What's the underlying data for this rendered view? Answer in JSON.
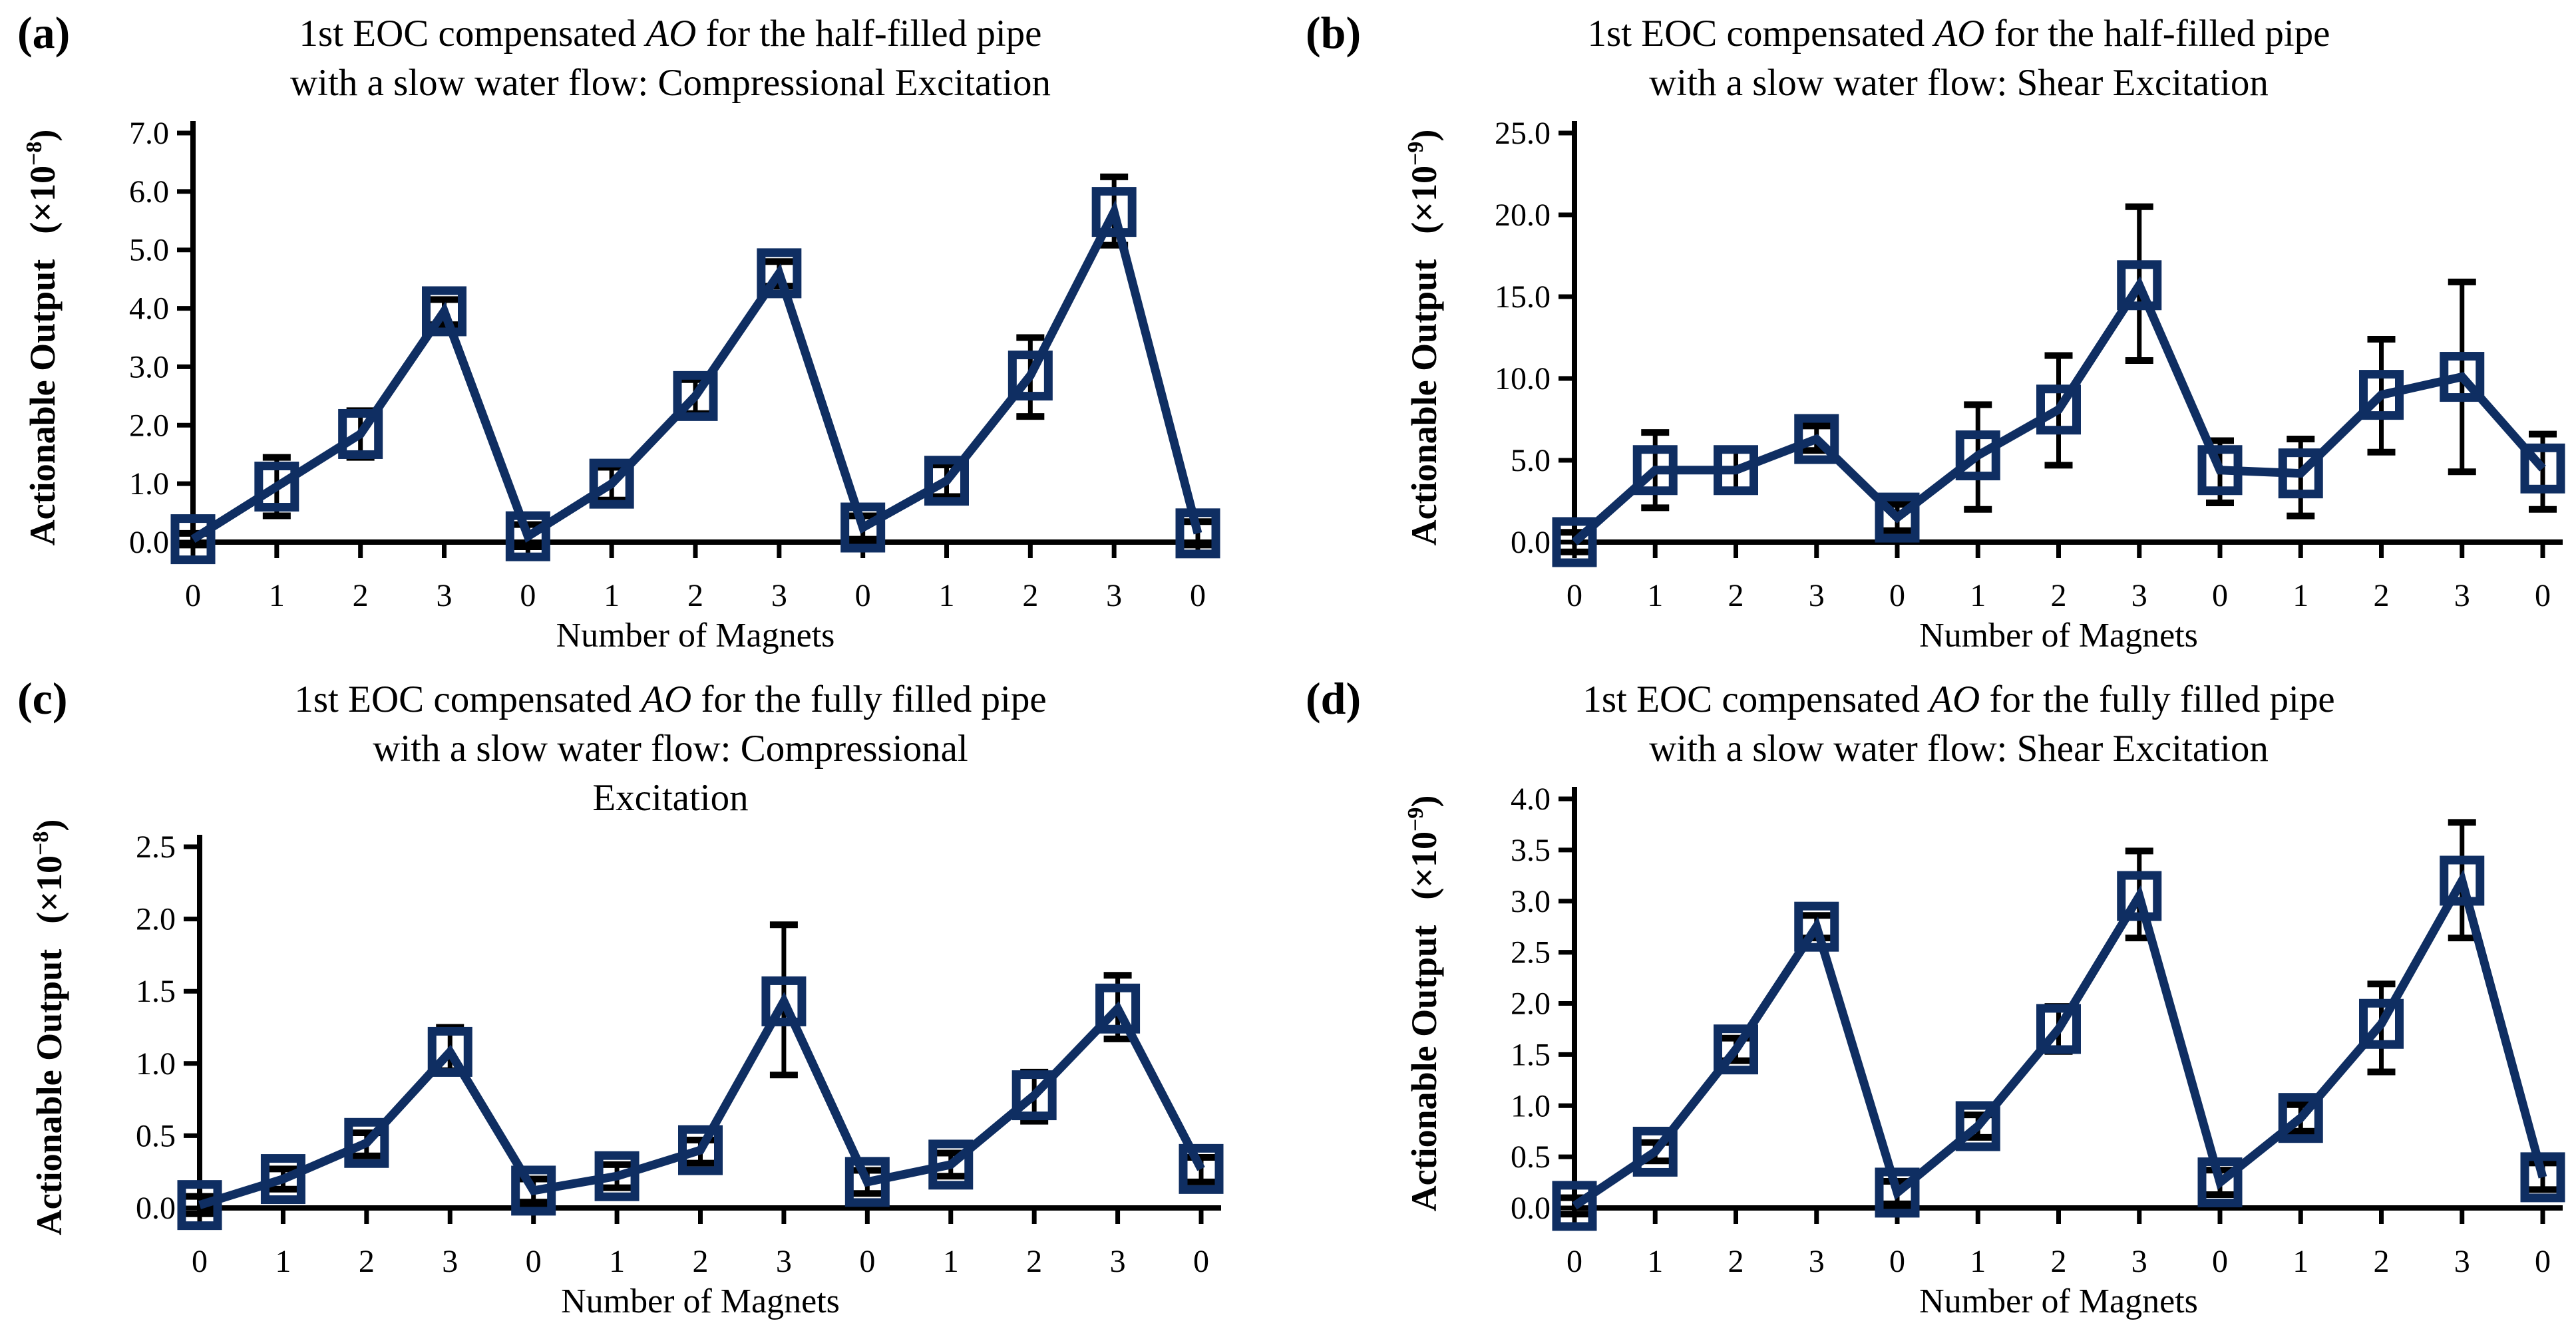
{
  "figure": {
    "background": "#ffffff",
    "series_color": "#0f2e62",
    "error_bar_color": "#000000",
    "axis_color": "#000000"
  },
  "chart_data": [
    {
      "panel": "(a)",
      "type": "line",
      "title_lines": [
        "1st EOC compensated AO for the half-filled pipe",
        "with a slow water flow: Compressional Excitation"
      ],
      "xlabel": "Number of Magnets",
      "ylabel": "Actionable Output",
      "y_scale_prefix": "(×10",
      "y_scale_exponent": "−8",
      "y_scale_suffix": ")",
      "ylim": [
        0.0,
        7.0
      ],
      "y_tick_labels": [
        "0.0",
        "1.0",
        "2.0",
        "3.0",
        "4.0",
        "5.0",
        "6.0",
        "7.0"
      ],
      "x_categories": [
        "0",
        "1",
        "2",
        "3",
        "0",
        "1",
        "2",
        "3",
        "0",
        "1",
        "2",
        "3",
        "0"
      ],
      "grid": "off",
      "legend": "none",
      "series": {
        "values": [
          0.05,
          0.95,
          1.85,
          3.95,
          0.1,
          1.0,
          2.5,
          4.6,
          0.25,
          1.05,
          2.85,
          5.65,
          0.15
        ],
        "err_low": [
          -0.05,
          0.45,
          1.45,
          3.72,
          -0.08,
          0.72,
          2.2,
          4.38,
          0.05,
          0.78,
          2.15,
          5.08,
          -0.05
        ],
        "err_high": [
          0.15,
          1.45,
          2.25,
          4.15,
          0.3,
          1.28,
          2.78,
          4.8,
          0.45,
          1.32,
          3.5,
          6.25,
          0.35
        ]
      }
    },
    {
      "panel": "(b)",
      "type": "line",
      "title_lines": [
        "1st EOC compensated AO for the half-filled pipe",
        "with a slow water flow: Shear Excitation"
      ],
      "xlabel": "Number of Magnets",
      "ylabel": "Actionable Output",
      "y_scale_prefix": "(×10",
      "y_scale_exponent": "−9",
      "y_scale_suffix": ")",
      "ylim": [
        0.0,
        25.0
      ],
      "y_tick_labels": [
        "0.0",
        "5.0",
        "10.0",
        "15.0",
        "20.0",
        "25.0"
      ],
      "x_categories": [
        "0",
        "1",
        "2",
        "3",
        "0",
        "1",
        "2",
        "3",
        "0",
        "1",
        "2",
        "3",
        "0"
      ],
      "grid": "off",
      "legend": "none",
      "series": {
        "values": [
          0.0,
          4.4,
          4.4,
          6.3,
          1.5,
          5.3,
          8.1,
          15.7,
          4.4,
          4.2,
          9.0,
          10.1,
          4.5
        ],
        "err_low": [
          -0.6,
          2.1,
          3.1,
          5.6,
          0.7,
          2.0,
          4.7,
          11.1,
          2.4,
          1.6,
          5.5,
          4.3,
          2.0
        ],
        "err_high": [
          0.6,
          6.7,
          5.7,
          7.1,
          2.3,
          8.4,
          11.4,
          20.5,
          6.2,
          6.3,
          12.4,
          15.9,
          6.6
        ]
      }
    },
    {
      "panel": "(c)",
      "type": "line",
      "title_lines": [
        "1st EOC compensated AO for the fully filled pipe",
        "with a slow water flow: Compressional",
        "Excitation"
      ],
      "xlabel": "Number of Magnets",
      "ylabel": "Actionable Output",
      "y_scale_prefix": "(×10",
      "y_scale_exponent": "−8",
      "y_scale_suffix": ")",
      "ylim": [
        0.0,
        2.5
      ],
      "y_tick_labels": [
        "0.0",
        "0.5",
        "1.0",
        "1.5",
        "2.0",
        "2.5"
      ],
      "x_categories": [
        "0",
        "1",
        "2",
        "3",
        "0",
        "1",
        "2",
        "3",
        "0",
        "1",
        "2",
        "3",
        "0"
      ],
      "grid": "off",
      "legend": "none",
      "series": {
        "values": [
          0.02,
          0.2,
          0.45,
          1.08,
          0.12,
          0.22,
          0.4,
          1.43,
          0.18,
          0.3,
          0.78,
          1.38,
          0.27
        ],
        "err_low": [
          -0.04,
          0.13,
          0.36,
          0.95,
          0.04,
          0.14,
          0.31,
          0.92,
          0.1,
          0.22,
          0.6,
          1.17,
          0.18
        ],
        "err_high": [
          0.08,
          0.27,
          0.52,
          1.25,
          0.2,
          0.3,
          0.47,
          1.96,
          0.26,
          0.38,
          0.94,
          1.61,
          0.35
        ]
      }
    },
    {
      "panel": "(d)",
      "type": "line",
      "title_lines": [
        "1st EOC compensated AO for the fully filled pipe",
        "with a slow water flow: Shear Excitation"
      ],
      "xlabel": "Number of Magnets",
      "ylabel": "Actionable Output",
      "y_scale_prefix": "(×10",
      "y_scale_exponent": "−9",
      "y_scale_suffix": ")",
      "ylim": [
        0.0,
        4.0
      ],
      "y_tick_labels": [
        "0.0",
        "0.5",
        "1.0",
        "1.5",
        "2.0",
        "2.5",
        "3.0",
        "3.5",
        "4.0"
      ],
      "x_categories": [
        "0",
        "1",
        "2",
        "3",
        "0",
        "1",
        "2",
        "3",
        "0",
        "1",
        "2",
        "3",
        "0"
      ],
      "grid": "off",
      "legend": "none",
      "series": {
        "values": [
          0.02,
          0.55,
          1.55,
          2.75,
          0.15,
          0.8,
          1.75,
          3.05,
          0.25,
          0.88,
          1.8,
          3.2,
          0.3
        ],
        "err_low": [
          -0.06,
          0.46,
          1.44,
          2.64,
          0.04,
          0.69,
          1.53,
          2.64,
          0.13,
          0.75,
          1.33,
          2.64,
          0.18
        ],
        "err_high": [
          0.1,
          0.64,
          1.66,
          2.86,
          0.26,
          0.91,
          1.97,
          3.49,
          0.37,
          1.01,
          2.19,
          3.77,
          0.44
        ]
      }
    }
  ]
}
